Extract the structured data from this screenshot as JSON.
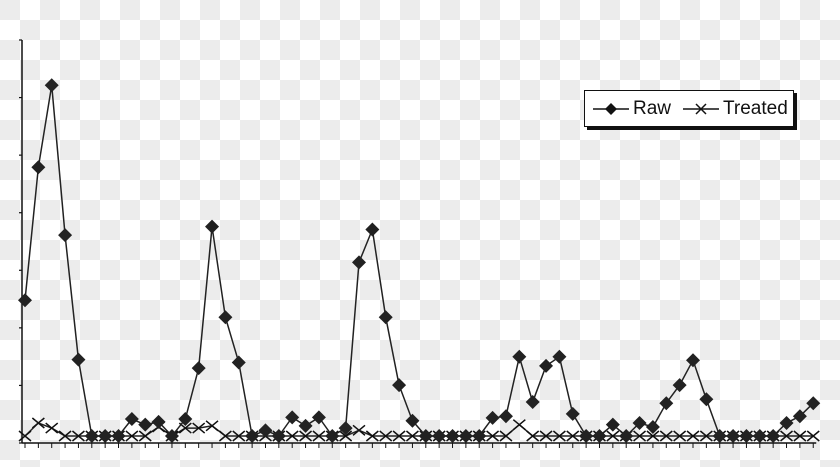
{
  "chart_data": {
    "type": "line",
    "title": "",
    "xlabel": "",
    "ylabel": "",
    "ylim": [
      0,
      7
    ],
    "yticks": [
      0,
      1,
      2,
      3,
      4,
      5,
      6,
      7
    ],
    "x_count": 60,
    "grid": false,
    "legend_placement": "top-right",
    "series": [
      {
        "name": "Raw",
        "marker": "diamond",
        "color": "#222222",
        "values": [
          2.4,
          4.75,
          6.2,
          3.55,
          1.35,
          0,
          0,
          0,
          0.3,
          0.2,
          0.25,
          0,
          0.3,
          1.2,
          3.7,
          2.1,
          1.3,
          0,
          0.1,
          0,
          0.33,
          0.18,
          0.33,
          0,
          0.14,
          3.07,
          3.65,
          2.1,
          0.9,
          0.27,
          0,
          0,
          0,
          0,
          0,
          0.32,
          0.35,
          1.4,
          0.6,
          1.24,
          1.4,
          0.39,
          0,
          0,
          0.2,
          0,
          0.23,
          0.16,
          0.58,
          0.9,
          1.34,
          0.65,
          0,
          0,
          0,
          0,
          0,
          0.23,
          0.35,
          0.58
        ]
      },
      {
        "name": "Treated",
        "marker": "x",
        "color": "#222222",
        "values": [
          0,
          0.23,
          0.14,
          0,
          0,
          0,
          0,
          0,
          0,
          0,
          0.16,
          0,
          0.14,
          0.14,
          0.18,
          0,
          0,
          0,
          0,
          0,
          0,
          0,
          0,
          0,
          0,
          0.1,
          0,
          0,
          0,
          0,
          0,
          0,
          0,
          0,
          0,
          0,
          0,
          0.2,
          0,
          0,
          0,
          0,
          0,
          0,
          0,
          0,
          0,
          0,
          0,
          0,
          0,
          0,
          0,
          0,
          0,
          0,
          0,
          0,
          0,
          0
        ]
      }
    ]
  }
}
